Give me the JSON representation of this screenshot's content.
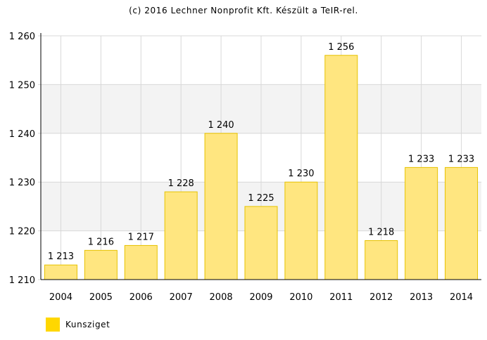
{
  "credit": "(c) 2016 Lechner Nonprofit Kft. Készült a TeIR-rel.",
  "legend": {
    "label": "Kunsziget",
    "color": "#ffd700"
  },
  "colors": {
    "bar_fill": "#ffe680",
    "bar_stroke": "#e6c200",
    "band": "#f3f3f3",
    "grid": "#d8d8d8"
  },
  "chart_data": {
    "type": "bar",
    "categories": [
      "2004",
      "2005",
      "2006",
      "2007",
      "2008",
      "2009",
      "2010",
      "2011",
      "2012",
      "2013",
      "2014"
    ],
    "values": [
      1213,
      1216,
      1217,
      1228,
      1240,
      1225,
      1230,
      1256,
      1218,
      1233,
      1233
    ],
    "value_labels": [
      "1 213",
      "1 216",
      "1 217",
      "1 228",
      "1 240",
      "1 225",
      "1 230",
      "1 256",
      "1 218",
      "1 233",
      "1 233"
    ],
    "ylim": [
      1210,
      1260
    ],
    "yticks": [
      1210,
      1220,
      1230,
      1240,
      1250,
      1260
    ],
    "ytick_labels": [
      "1 210",
      "1 220",
      "1 230",
      "1 240",
      "1 250",
      "1 260"
    ],
    "series": [
      {
        "name": "Kunsziget",
        "values": [
          1213,
          1216,
          1217,
          1228,
          1240,
          1225,
          1230,
          1256,
          1218,
          1233,
          1233
        ]
      }
    ],
    "grid": true,
    "legend_position": "bottom-left"
  }
}
